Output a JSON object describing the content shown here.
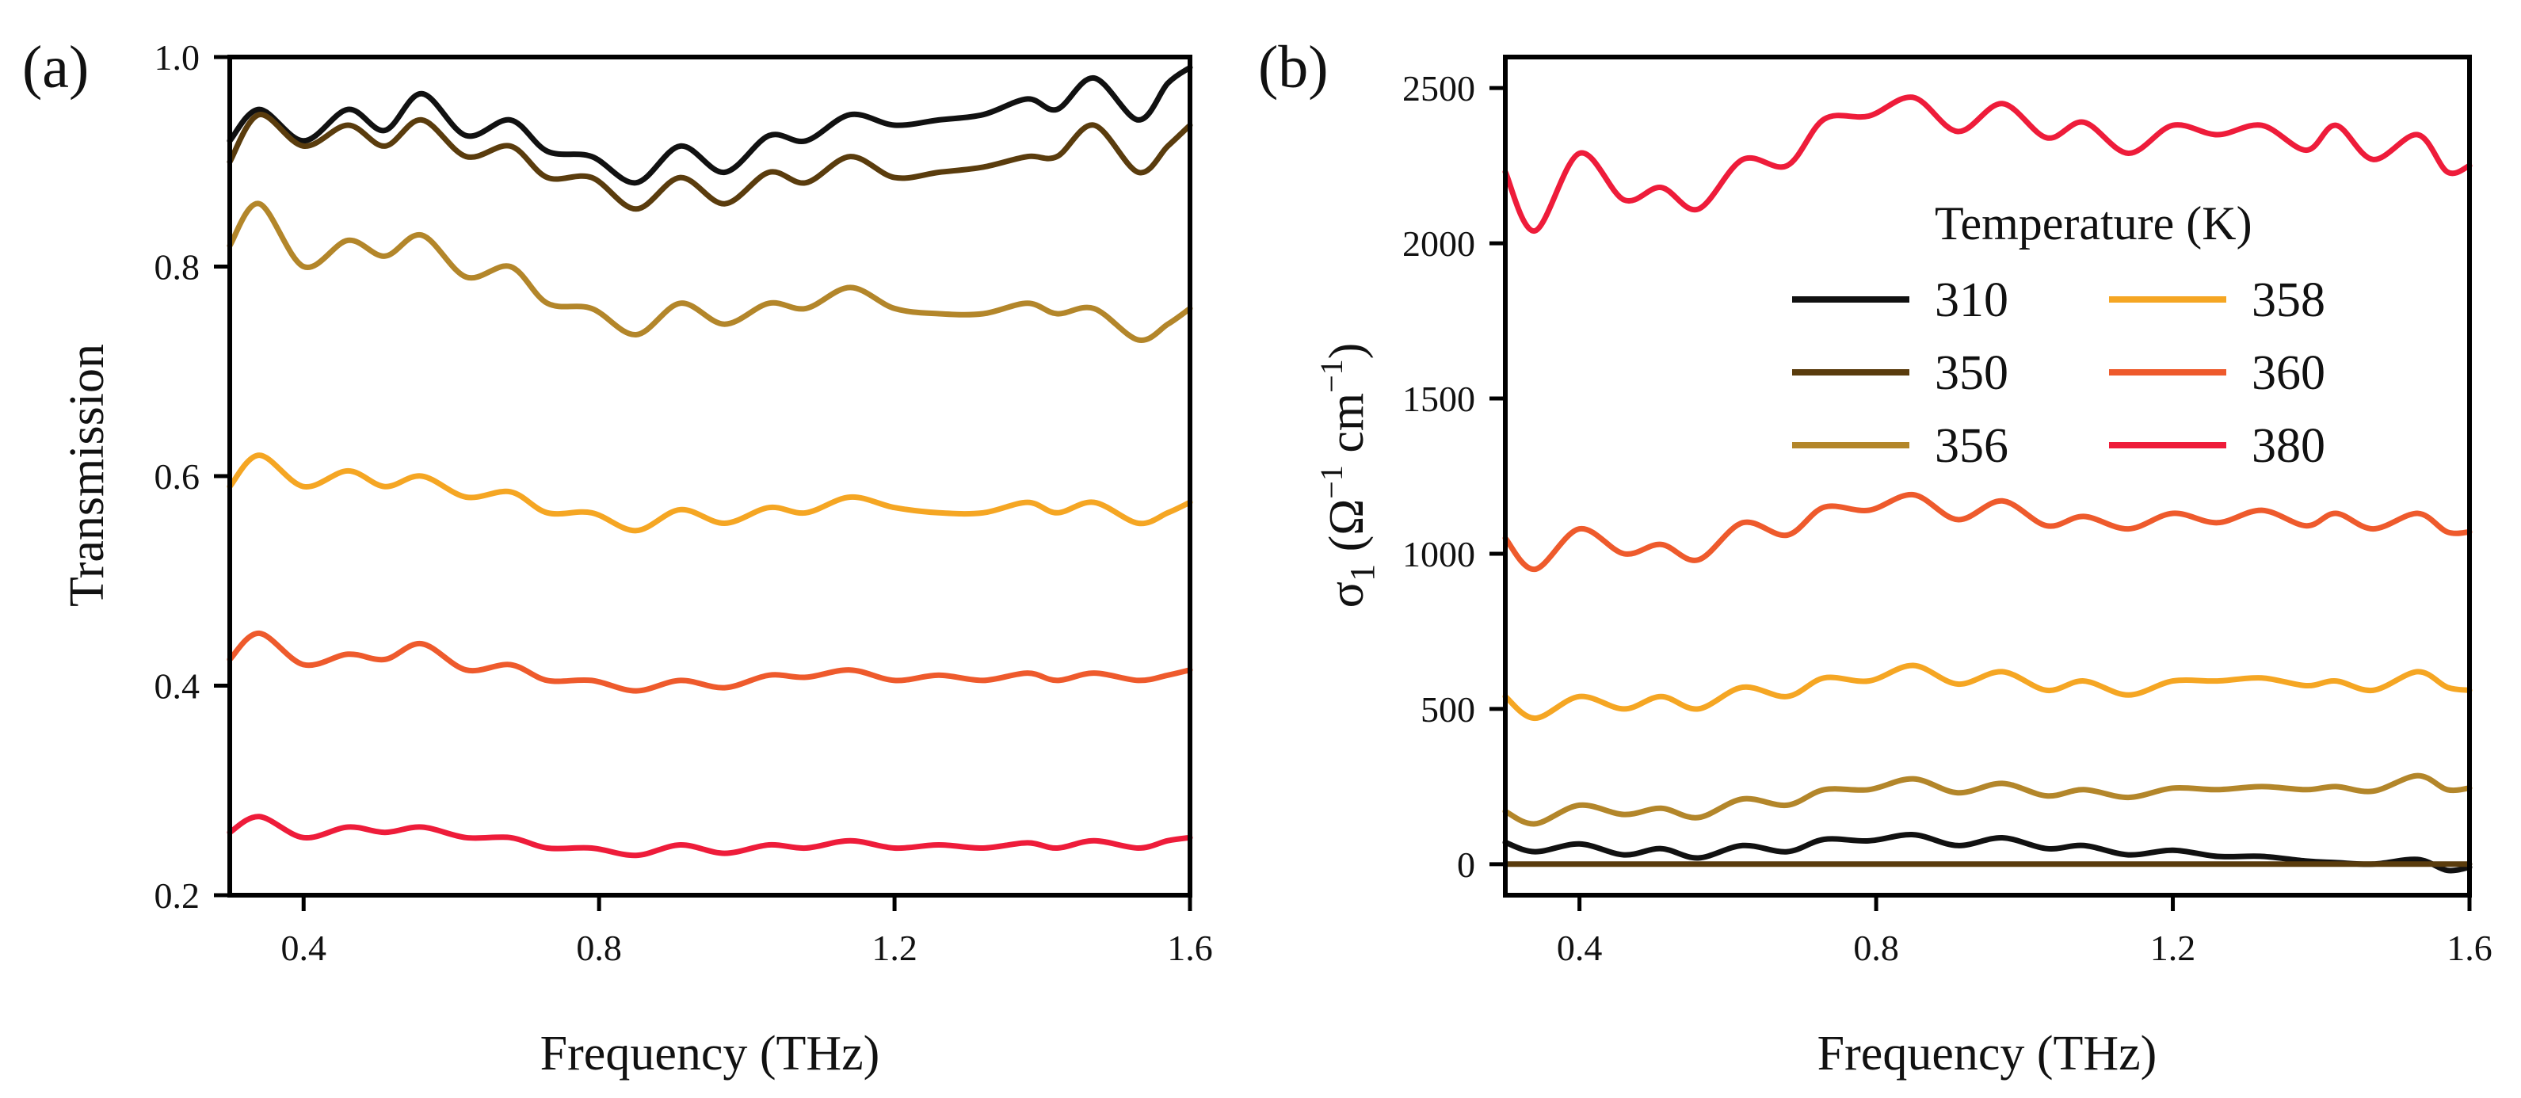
{
  "colors": {
    "310": "#111111",
    "350": "#5a3c0d",
    "356": "#b3862a",
    "358": "#f5a623",
    "360": "#ee5a2c",
    "380": "#ee1c3a"
  },
  "chart_data": [
    {
      "type": "line",
      "panel_label": "(a)",
      "xlabel": "Frequency (THz)",
      "ylabel": "Transmission",
      "xlim": [
        0.3,
        1.6
      ],
      "ylim": [
        0.2,
        1.0
      ],
      "xticks": [
        0.4,
        0.8,
        1.2,
        1.6
      ],
      "xtick_labels": [
        "0.4",
        "0.8",
        "1.2",
        "1.6"
      ],
      "yticks": [
        0.2,
        0.4,
        0.6,
        0.8,
        1.0
      ],
      "ytick_labels": [
        "0.2",
        "0.4",
        "0.6",
        "0.8",
        "1.0"
      ],
      "grid": false,
      "x": [
        0.3,
        0.34,
        0.4,
        0.46,
        0.51,
        0.56,
        0.62,
        0.68,
        0.73,
        0.79,
        0.85,
        0.91,
        0.97,
        1.03,
        1.08,
        1.14,
        1.2,
        1.26,
        1.32,
        1.38,
        1.42,
        1.47,
        1.53,
        1.57,
        1.6
      ],
      "series": [
        {
          "key": "310",
          "values": [
            0.92,
            0.95,
            0.92,
            0.95,
            0.93,
            0.965,
            0.925,
            0.94,
            0.91,
            0.905,
            0.88,
            0.915,
            0.89,
            0.925,
            0.92,
            0.945,
            0.935,
            0.94,
            0.945,
            0.96,
            0.95,
            0.98,
            0.94,
            0.975,
            0.99
          ]
        },
        {
          "key": "350",
          "values": [
            0.9,
            0.945,
            0.915,
            0.935,
            0.915,
            0.94,
            0.905,
            0.915,
            0.885,
            0.885,
            0.855,
            0.885,
            0.86,
            0.89,
            0.88,
            0.905,
            0.885,
            0.89,
            0.895,
            0.905,
            0.905,
            0.935,
            0.89,
            0.915,
            0.935
          ]
        },
        {
          "key": "356",
          "values": [
            0.82,
            0.86,
            0.8,
            0.825,
            0.81,
            0.83,
            0.79,
            0.8,
            0.765,
            0.76,
            0.735,
            0.765,
            0.745,
            0.765,
            0.76,
            0.78,
            0.76,
            0.755,
            0.755,
            0.765,
            0.755,
            0.76,
            0.73,
            0.745,
            0.76
          ]
        },
        {
          "key": "358",
          "values": [
            0.59,
            0.62,
            0.59,
            0.605,
            0.59,
            0.6,
            0.58,
            0.585,
            0.565,
            0.565,
            0.548,
            0.568,
            0.555,
            0.57,
            0.565,
            0.58,
            0.57,
            0.565,
            0.565,
            0.575,
            0.565,
            0.575,
            0.555,
            0.565,
            0.575
          ]
        },
        {
          "key": "360",
          "values": [
            0.425,
            0.45,
            0.42,
            0.43,
            0.425,
            0.44,
            0.415,
            0.42,
            0.405,
            0.405,
            0.395,
            0.405,
            0.398,
            0.41,
            0.408,
            0.415,
            0.405,
            0.41,
            0.405,
            0.412,
            0.405,
            0.412,
            0.405,
            0.41,
            0.415
          ]
        },
        {
          "key": "380",
          "values": [
            0.26,
            0.275,
            0.255,
            0.265,
            0.26,
            0.265,
            0.255,
            0.255,
            0.245,
            0.245,
            0.238,
            0.248,
            0.24,
            0.248,
            0.245,
            0.252,
            0.245,
            0.248,
            0.245,
            0.25,
            0.245,
            0.252,
            0.245,
            0.252,
            0.255
          ]
        }
      ]
    },
    {
      "type": "line",
      "panel_label": "(b)",
      "xlabel": "Frequency (THz)",
      "ylabel_main": "σ",
      "ylabel_sub": "1",
      "ylabel_units_open": " (Ω",
      "ylabel_units_sup1": "−1",
      "ylabel_units_mid": " cm",
      "ylabel_units_sup2": "−1",
      "ylabel_units_close": ")",
      "xlim": [
        0.3,
        1.6
      ],
      "ylim": [
        -100,
        2600
      ],
      "xticks": [
        0.4,
        0.8,
        1.2,
        1.6
      ],
      "xtick_labels": [
        "0.4",
        "0.8",
        "1.2",
        "1.6"
      ],
      "yticks": [
        0,
        500,
        1000,
        1500,
        2000,
        2500
      ],
      "ytick_labels": [
        "0",
        "500",
        "1000",
        "1500",
        "2000",
        "2500"
      ],
      "grid": false,
      "legend": {
        "title": "Temperature (K)",
        "placement": "upper-right",
        "columns": [
          [
            "310",
            "350",
            "356"
          ],
          [
            "358",
            "360",
            "380"
          ]
        ]
      },
      "x": [
        0.3,
        0.34,
        0.4,
        0.46,
        0.51,
        0.56,
        0.62,
        0.68,
        0.73,
        0.79,
        0.85,
        0.91,
        0.97,
        1.03,
        1.08,
        1.14,
        1.2,
        1.26,
        1.32,
        1.38,
        1.42,
        1.47,
        1.53,
        1.57,
        1.6
      ],
      "series": [
        {
          "key": "310",
          "values": [
            70,
            40,
            65,
            30,
            50,
            20,
            60,
            40,
            80,
            75,
            95,
            60,
            85,
            50,
            60,
            30,
            45,
            25,
            25,
            10,
            5,
            0,
            15,
            -20,
            -10
          ]
        },
        {
          "key": "350",
          "values": [
            0,
            0,
            0,
            0,
            0,
            0,
            0,
            0,
            0,
            0,
            0,
            0,
            0,
            0,
            0,
            0,
            0,
            0,
            0,
            0,
            0,
            0,
            0,
            0,
            0
          ]
        },
        {
          "key": "356",
          "values": [
            170,
            130,
            190,
            160,
            180,
            150,
            210,
            190,
            240,
            240,
            275,
            230,
            260,
            220,
            240,
            215,
            245,
            240,
            250,
            240,
            250,
            235,
            285,
            240,
            245
          ]
        },
        {
          "key": "358",
          "values": [
            540,
            470,
            540,
            500,
            540,
            500,
            570,
            540,
            600,
            590,
            640,
            580,
            620,
            560,
            590,
            545,
            590,
            590,
            600,
            575,
            590,
            560,
            620,
            570,
            560
          ]
        },
        {
          "key": "360",
          "values": [
            1050,
            950,
            1080,
            1000,
            1030,
            980,
            1100,
            1060,
            1150,
            1140,
            1190,
            1110,
            1170,
            1090,
            1120,
            1080,
            1130,
            1100,
            1140,
            1090,
            1130,
            1080,
            1130,
            1070,
            1070
          ]
        },
        {
          "key": "380",
          "values": [
            2230,
            2040,
            2290,
            2140,
            2180,
            2110,
            2270,
            2250,
            2400,
            2410,
            2470,
            2360,
            2450,
            2340,
            2390,
            2290,
            2380,
            2350,
            2380,
            2300,
            2380,
            2270,
            2350,
            2230,
            2250
          ]
        }
      ]
    }
  ]
}
